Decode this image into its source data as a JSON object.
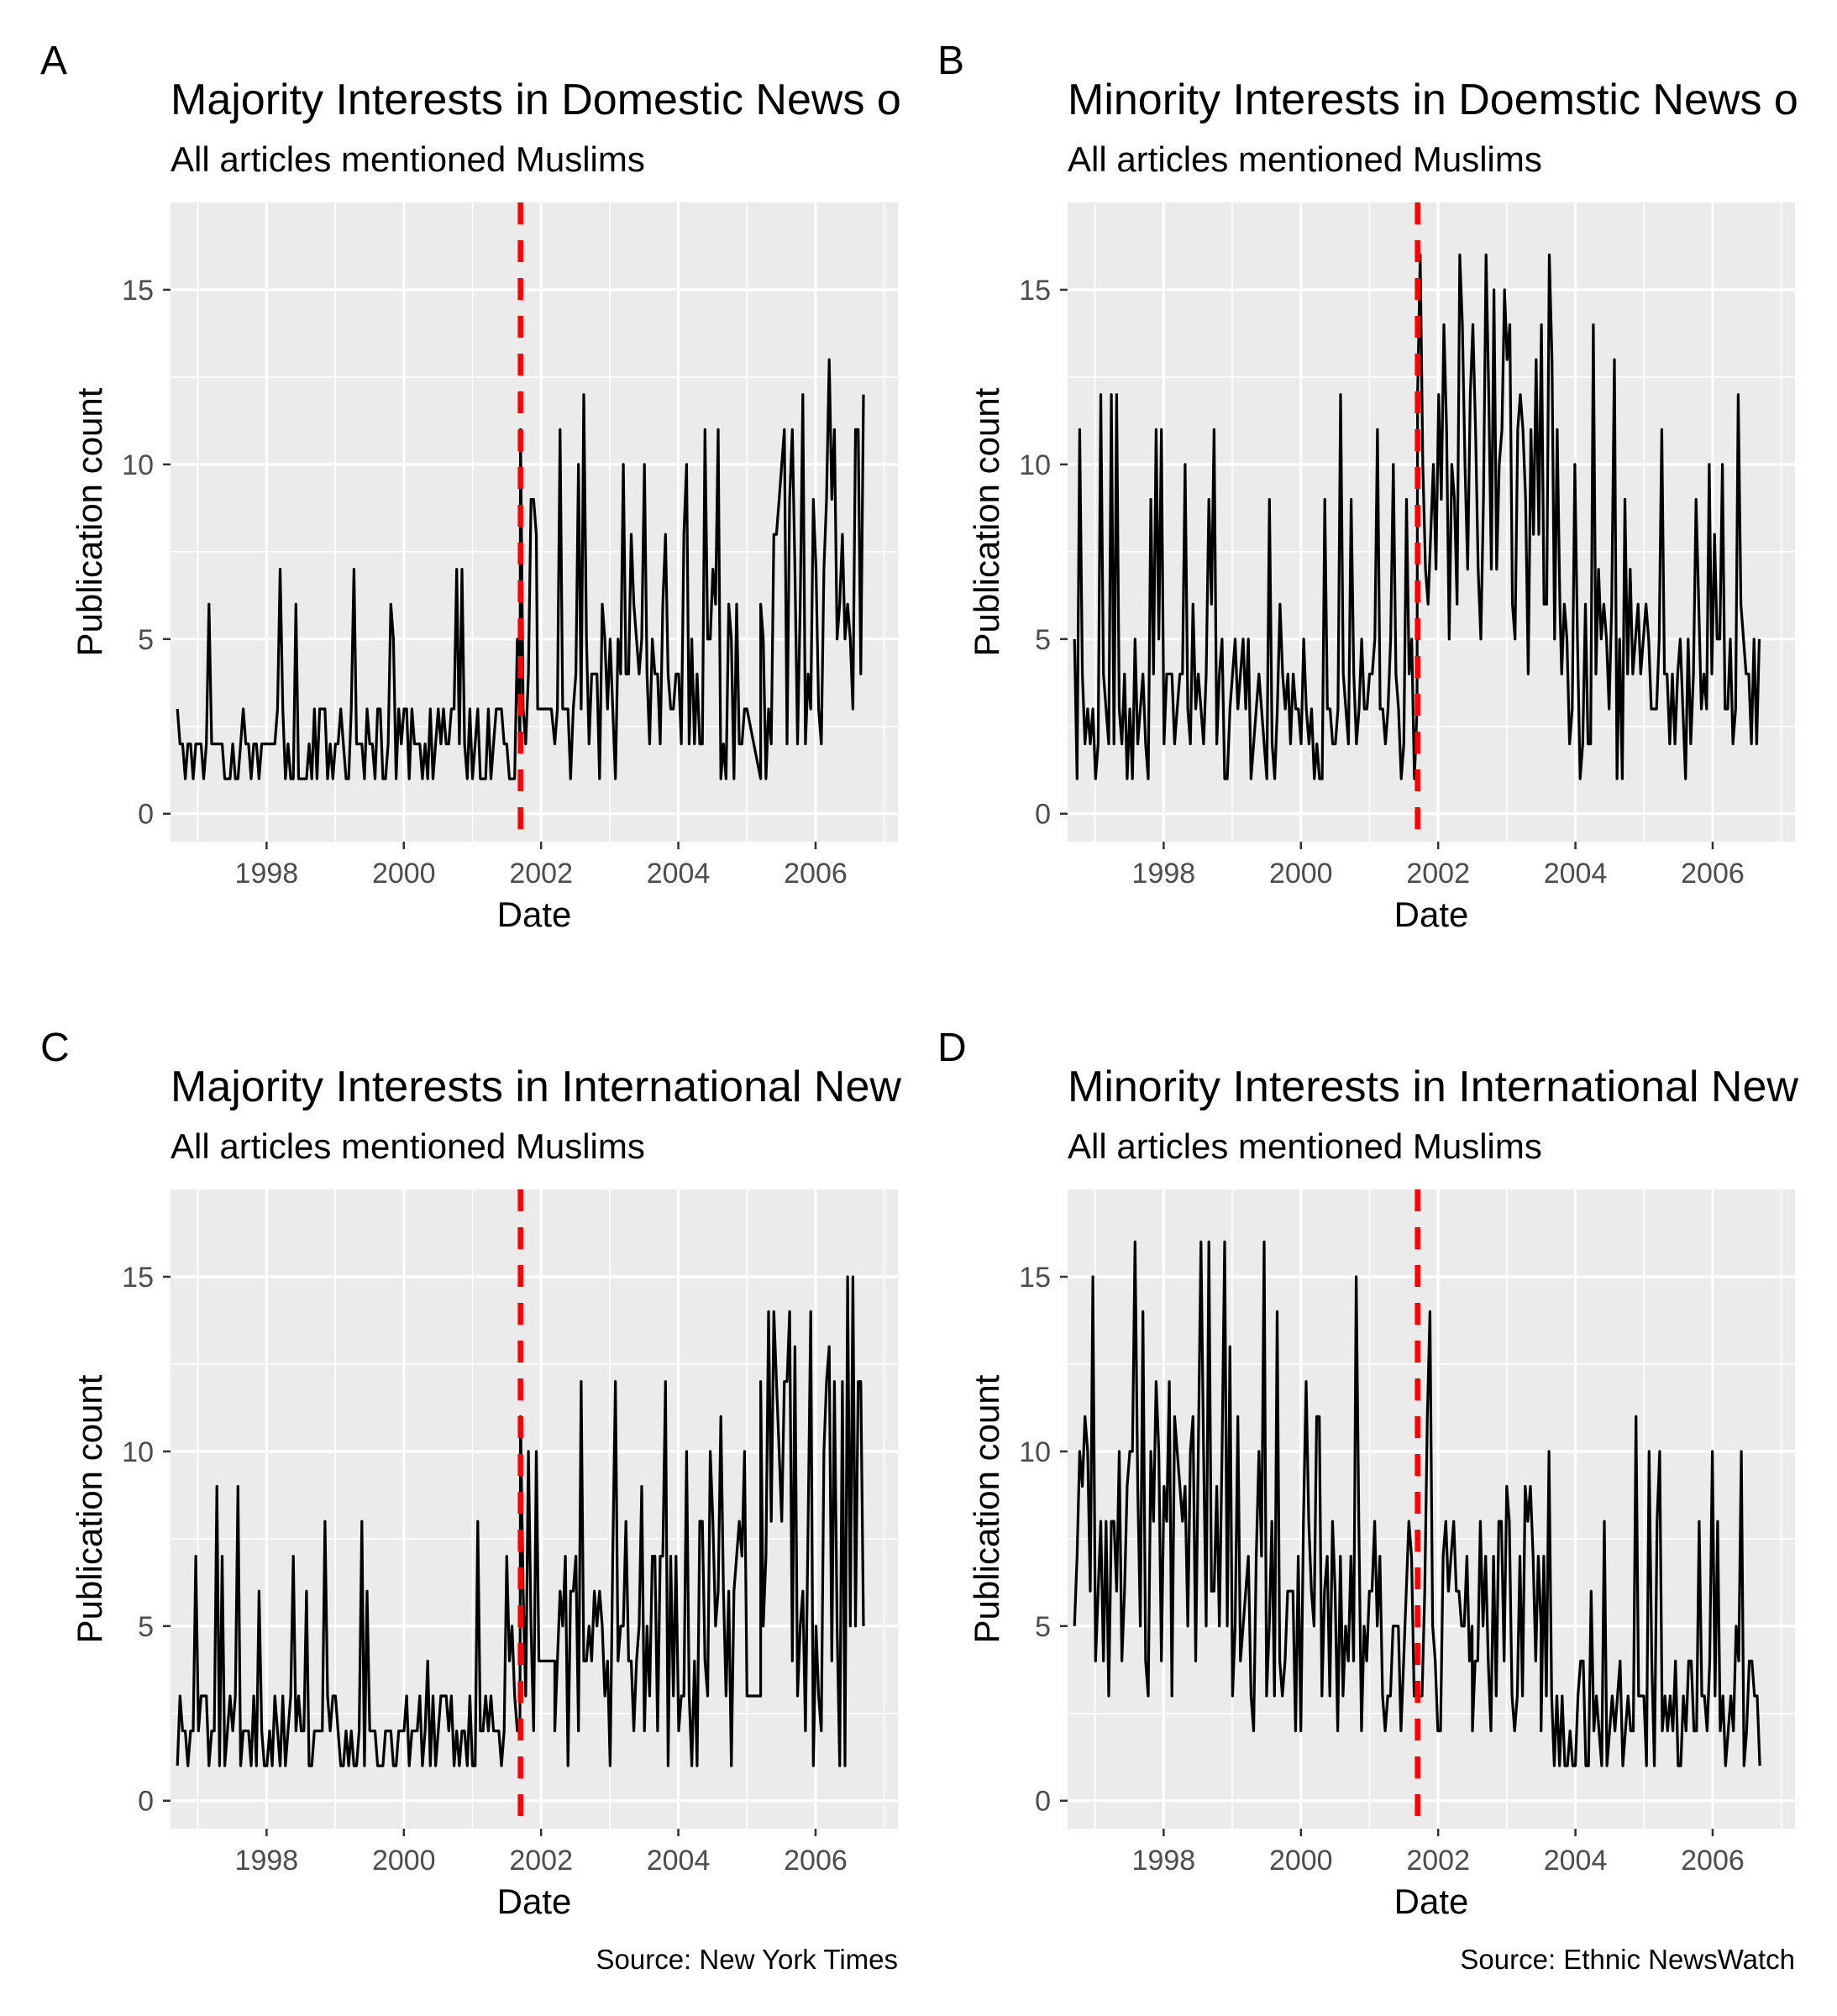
{
  "chart_data": [
    {
      "panel": "A",
      "type": "line",
      "title": "Majority Interests in Domestic News o",
      "subtitle": "All articles mentioned Muslims",
      "xlabel": "Date",
      "ylabel": "Publication count",
      "xlim": [
        1996.6,
        2007.2
      ],
      "ylim": [
        -0.8,
        17.5
      ],
      "xticks": [
        1998,
        2000,
        2002,
        2004,
        2006
      ],
      "yticks": [
        0,
        5,
        10,
        15
      ],
      "grid": true,
      "vline": {
        "x": 2001.7,
        "color": "#ff0000",
        "style": "dashed"
      },
      "series_profile": [
        {
          "from": 1996.7,
          "to": 2001.7,
          "low": 1,
          "base": 2,
          "high": 3,
          "spike_prob": 0.1,
          "spike_max": 7,
          "step": 0.0384
        },
        {
          "from": 2001.7,
          "to": 2001.95,
          "low": 1,
          "base": 6,
          "high": 10,
          "spike_prob": 0.3,
          "spike_max": 12,
          "step": 0.0384
        },
        {
          "from": 2001.95,
          "to": 2002.2,
          "low": 3,
          "base": 3,
          "high": 3,
          "spike_prob": 0,
          "spike_max": 3,
          "step": 0.1
        },
        {
          "from": 2002.2,
          "to": 2005.0,
          "low": 1,
          "base": 3,
          "high": 6,
          "spike_prob": 0.2,
          "spike_max": 12,
          "step": 0.0384
        },
        {
          "from": 2005.0,
          "to": 2005.2,
          "low": 1,
          "base": 2,
          "high": 3,
          "spike_prob": 0,
          "spike_max": 3,
          "step": 0.1
        },
        {
          "from": 2005.2,
          "to": 2006.7,
          "low": 1,
          "base": 5,
          "high": 9,
          "spike_prob": 0.3,
          "spike_max": 13,
          "step": 0.0384
        }
      ],
      "y_max_observed": 13
    },
    {
      "panel": "B",
      "type": "line",
      "title": "Minority Interests in Doemstic News o",
      "subtitle": "All articles mentioned Muslims",
      "xlabel": "Date",
      "ylabel": "Publication count",
      "xlim": [
        1996.6,
        2007.2
      ],
      "ylim": [
        -0.8,
        17.5
      ],
      "xticks": [
        1998,
        2000,
        2002,
        2004,
        2006
      ],
      "yticks": [
        0,
        5,
        10,
        15
      ],
      "grid": true,
      "vline": {
        "x": 2001.7,
        "color": "#ff0000",
        "style": "dashed"
      },
      "series_profile": [
        {
          "from": 1996.7,
          "to": 2001.7,
          "low": 1,
          "base": 3,
          "high": 5,
          "spike_prob": 0.12,
          "spike_max": 12,
          "step": 0.0384
        },
        {
          "from": 2001.7,
          "to": 2003.8,
          "low": 4,
          "base": 10,
          "high": 14,
          "spike_prob": 0.2,
          "spike_max": 17,
          "step": 0.0384
        },
        {
          "from": 2003.8,
          "to": 2006.7,
          "low": 1,
          "base": 3,
          "high": 6,
          "spike_prob": 0.12,
          "spike_max": 14,
          "step": 0.0384
        }
      ],
      "y_max_observed": 17
    },
    {
      "panel": "C",
      "type": "line",
      "title": "Majority Interests in International New",
      "subtitle": "All articles mentioned Muslims",
      "xlabel": "Date",
      "ylabel": "Publication count",
      "xlim": [
        1996.6,
        2007.2
      ],
      "ylim": [
        -0.8,
        17.5
      ],
      "xticks": [
        1998,
        2000,
        2002,
        2004,
        2006
      ],
      "yticks": [
        0,
        5,
        10,
        15
      ],
      "grid": true,
      "vline": {
        "x": 2001.7,
        "color": "#ff0000",
        "style": "dashed"
      },
      "series_profile": [
        {
          "from": 1996.7,
          "to": 2001.7,
          "low": 1,
          "base": 2,
          "high": 3,
          "spike_prob": 0.1,
          "spike_max": 9,
          "step": 0.0384
        },
        {
          "from": 2001.7,
          "to": 2002.0,
          "low": 2,
          "base": 6,
          "high": 10,
          "spike_prob": 0.3,
          "spike_max": 11,
          "step": 0.0384
        },
        {
          "from": 2002.0,
          "to": 2002.2,
          "low": 4,
          "base": 4,
          "high": 4,
          "spike_prob": 0,
          "spike_max": 4,
          "step": 0.1
        },
        {
          "from": 2002.2,
          "to": 2005.0,
          "low": 1,
          "base": 4,
          "high": 8,
          "spike_prob": 0.15,
          "spike_max": 12,
          "step": 0.0384
        },
        {
          "from": 2005.0,
          "to": 2005.2,
          "low": 2,
          "base": 3,
          "high": 5,
          "spike_prob": 0,
          "spike_max": 5,
          "step": 0.1
        },
        {
          "from": 2005.2,
          "to": 2006.7,
          "low": 1,
          "base": 6,
          "high": 11,
          "spike_prob": 0.3,
          "spike_max": 15,
          "step": 0.0384
        }
      ],
      "y_max_observed": 15
    },
    {
      "panel": "D",
      "type": "line",
      "title": "Minority Interests in International New",
      "subtitle": "All articles mentioned Muslims",
      "xlabel": "Date",
      "ylabel": "Publication count",
      "xlim": [
        1996.6,
        2007.2
      ],
      "ylim": [
        -0.8,
        17.5
      ],
      "xticks": [
        1998,
        2000,
        2002,
        2004,
        2006
      ],
      "yticks": [
        0,
        5,
        10,
        15
      ],
      "grid": true,
      "vline": {
        "x": 2001.7,
        "color": "#ff0000",
        "style": "dashed"
      },
      "series_profile": [
        {
          "from": 1996.7,
          "to": 1999.5,
          "low": 2,
          "base": 7,
          "high": 11,
          "spike_prob": 0.15,
          "spike_max": 17,
          "step": 0.0384
        },
        {
          "from": 1999.5,
          "to": 2002.5,
          "low": 2,
          "base": 5,
          "high": 8,
          "spike_prob": 0.12,
          "spike_max": 17,
          "step": 0.0384
        },
        {
          "from": 2002.5,
          "to": 2003.5,
          "low": 2,
          "base": 5,
          "high": 8,
          "spike_prob": 0.1,
          "spike_max": 9,
          "step": 0.0384
        },
        {
          "from": 2003.5,
          "to": 2006.7,
          "low": 1,
          "base": 2,
          "high": 4,
          "spike_prob": 0.1,
          "spike_max": 12,
          "step": 0.0384
        }
      ],
      "y_max_observed": 17
    }
  ],
  "captions": {
    "left": "Source: New York Times",
    "right": "Source: Ethnic NewsWatch"
  }
}
